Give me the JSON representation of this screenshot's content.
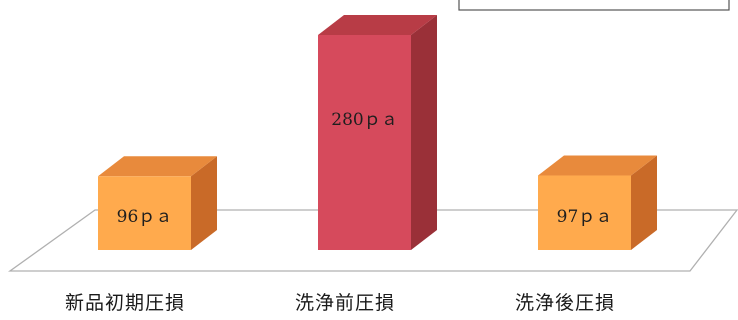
{
  "chart_data": {
    "type": "bar",
    "categories": [
      "新品初期圧損",
      "洗浄前圧損",
      "洗浄後圧損"
    ],
    "values": [
      96,
      280,
      97
    ],
    "value_labels": [
      "96ｐａ",
      "280ｐａ",
      "97ｐａ"
    ],
    "ylim": [
      0,
      280
    ],
    "grid": false,
    "style": "3d",
    "colors": {
      "bar_default_front": "#FFAA4D",
      "bar_default_side": "#C96A28",
      "bar_default_top": "#E88A3C",
      "bar_highlight_front": "#D64A5C",
      "bar_highlight_side": "#9A3038",
      "bar_highlight_top": "#B83C46",
      "floor_stroke": "#B0B0B0"
    },
    "highlight_index": 1
  }
}
